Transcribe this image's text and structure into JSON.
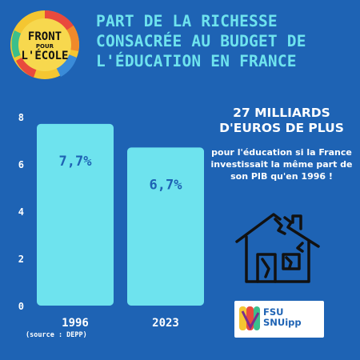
{
  "badge": {
    "line1": "FRONT",
    "line2": "POUR",
    "line3": "L'ÉCOLE"
  },
  "title_lines": [
    "PART DE LA RICHESSE",
    "CONSACRÉE AU BUDGET DE",
    "L'ÉDUCATION EN FRANCE"
  ],
  "chart_data": {
    "type": "bar",
    "categories": [
      "1996",
      "2023"
    ],
    "values": [
      7.7,
      6.7
    ],
    "data_labels": [
      "7,7%",
      "6,7%"
    ],
    "yticks": [
      "0",
      "2",
      "4",
      "6",
      "8"
    ],
    "ylim": [
      0,
      8
    ],
    "grid": false,
    "bar_color": "#6ee3ee",
    "label_color": "#1e63b4"
  },
  "source": "(source : DEPP)",
  "headline": {
    "line1": "27 MILLIARDS",
    "line2": "D'EUROS DE PLUS"
  },
  "subtext_lines": [
    "pour l'éducation si la France",
    "investissait la même part de",
    "son PIB qu'en 1996 !"
  ],
  "house_icon": "broken-house-icon",
  "logo": {
    "name_line1": "FSU",
    "name_line2": "SNUipp"
  },
  "colors": {
    "background": "#1e63b4",
    "accent": "#6ee3ee",
    "white": "#ffffff"
  }
}
